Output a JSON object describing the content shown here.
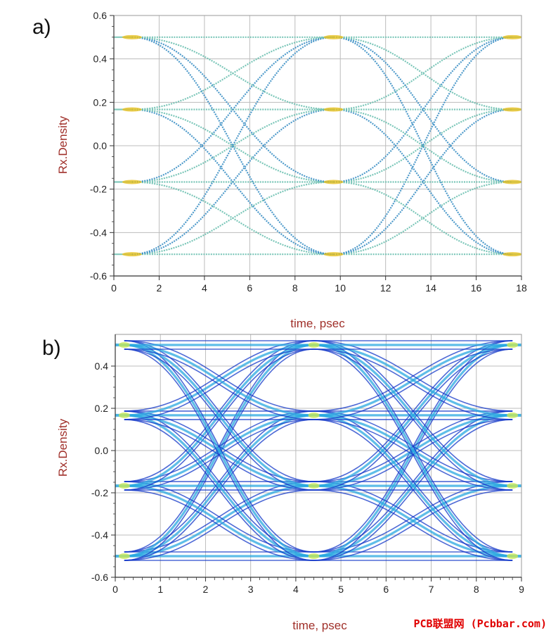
{
  "panels": [
    {
      "label": "a)",
      "xlabel": "time, psec",
      "ylabel": "Rx.Density"
    },
    {
      "label": "b)",
      "xlabel": "time, psec",
      "ylabel": "Rx.Density"
    }
  ],
  "watermark": "PCB联盟网 (Pcbbar.com)",
  "colors": {
    "axis_label": "#a0302a",
    "grid": "#bcbcbc",
    "a_trace": "#6cc0b0",
    "a_trace_dark": "#3b8fc4",
    "a_hot": "#e8c020",
    "b_trace": "#2aa8e0",
    "b_dark": "#1438c8",
    "b_hot": "#c8e85a"
  },
  "chart_data": [
    {
      "type": "eye-diagram",
      "title": "",
      "xlabel": "time, psec",
      "ylabel": "Rx.Density",
      "xlim": [
        0,
        18
      ],
      "ylim": [
        -0.6,
        0.6
      ],
      "xticks": [
        0,
        2,
        4,
        6,
        8,
        10,
        12,
        14,
        16,
        18
      ],
      "yticks": [
        -0.6,
        -0.4,
        -0.2,
        0.0,
        0.2,
        0.4,
        0.6
      ],
      "xtick_labels": [
        "0",
        "2",
        "4",
        "6",
        "8",
        "10",
        "12",
        "14",
        "16",
        "18"
      ],
      "ytick_labels": [
        "-0.6",
        "-0.4",
        "-0.2",
        "0.0",
        "0.2",
        "0.4",
        "0.6"
      ],
      "levels": [
        -0.5,
        -0.167,
        0.167,
        0.5
      ],
      "eye_centers": [
        0.8,
        9.7,
        17.6
      ],
      "crossing_centers": [
        4.5,
        13.3
      ],
      "grid": true,
      "legend": "none"
    },
    {
      "type": "eye-diagram",
      "title": "",
      "xlabel": "time, psec",
      "ylabel": "Rx.Density",
      "xlim": [
        0,
        9
      ],
      "ylim": [
        -0.6,
        0.55
      ],
      "xticks": [
        0,
        1,
        2,
        3,
        4,
        5,
        6,
        7,
        8,
        9
      ],
      "yticks": [
        -0.6,
        -0.4,
        -0.2,
        0.0,
        0.2,
        0.4
      ],
      "xtick_labels": [
        "0",
        "1",
        "2",
        "3",
        "4",
        "5",
        "6",
        "7",
        "8",
        "9"
      ],
      "ytick_labels": [
        "-0.6",
        "-0.4",
        "-0.2",
        "0.0",
        "0.2",
        "0.4"
      ],
      "levels": [
        -0.5,
        -0.167,
        0.167,
        0.5
      ],
      "eye_centers": [
        0.2,
        4.4,
        8.8
      ],
      "crossing_centers": [
        2.2,
        6.6
      ],
      "grid": true,
      "legend": "none"
    }
  ]
}
